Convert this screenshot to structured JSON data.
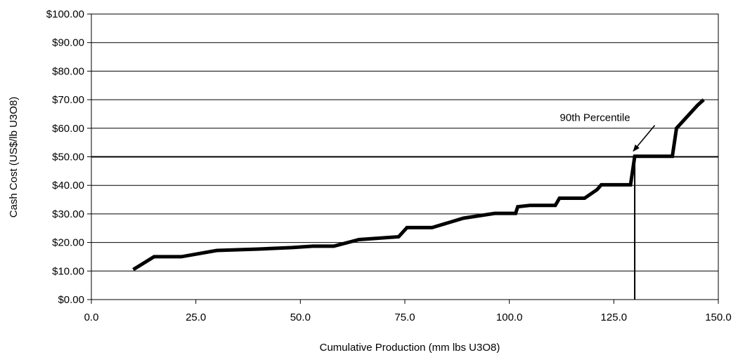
{
  "chart_data": {
    "type": "line",
    "title": "",
    "xlabel": "Cumulative Production (mm lbs U3O8)",
    "ylabel": "Cash Cost (US$/lb U3O8)",
    "xlim": [
      0,
      150
    ],
    "ylim": [
      0,
      100
    ],
    "x_ticks": [
      0,
      25,
      50,
      75,
      100,
      125,
      150
    ],
    "x_tick_labels": [
      "0.0",
      "25.0",
      "50.0",
      "75.0",
      "100.0",
      "125.0",
      "150.0"
    ],
    "y_ticks": [
      0,
      10,
      20,
      30,
      40,
      50,
      60,
      70,
      80,
      90,
      100
    ],
    "y_tick_labels": [
      "$0.00",
      "$10.00",
      "$20.00",
      "$30.00",
      "$40.00",
      "$50.00",
      "$60.00",
      "$70.00",
      "$80.00",
      "$90.00",
      "$100.00"
    ],
    "grid": "horizontal",
    "line_color": "#000000",
    "series": [
      {
        "name": "",
        "x": [
          10,
          15,
          21.5,
          30,
          40,
          48,
          53,
          58,
          64,
          73.5,
          75.5,
          81.5,
          89,
          96.5,
          101.5,
          102,
          105,
          111,
          112,
          118,
          121,
          122,
          129,
          130,
          139,
          140,
          145,
          146.5
        ],
        "y": [
          10.5,
          15,
          15,
          17.2,
          17.7,
          18.2,
          18.7,
          18.7,
          21,
          22,
          25.2,
          25.2,
          28.5,
          30.2,
          30.2,
          32.5,
          33,
          33,
          35.5,
          35.5,
          38.5,
          40.2,
          40.2,
          50.2,
          50.2,
          60,
          68,
          70
        ]
      }
    ],
    "reference_line": {
      "x": 130,
      "y_from": 0,
      "y_to": 50
    },
    "highlight_gridline": 50,
    "annotations": [
      {
        "text": "90th Percentile",
        "x": 120.5,
        "y": 62.5,
        "arrow_to": {
          "x": 130,
          "y": 52
        }
      }
    ]
  }
}
